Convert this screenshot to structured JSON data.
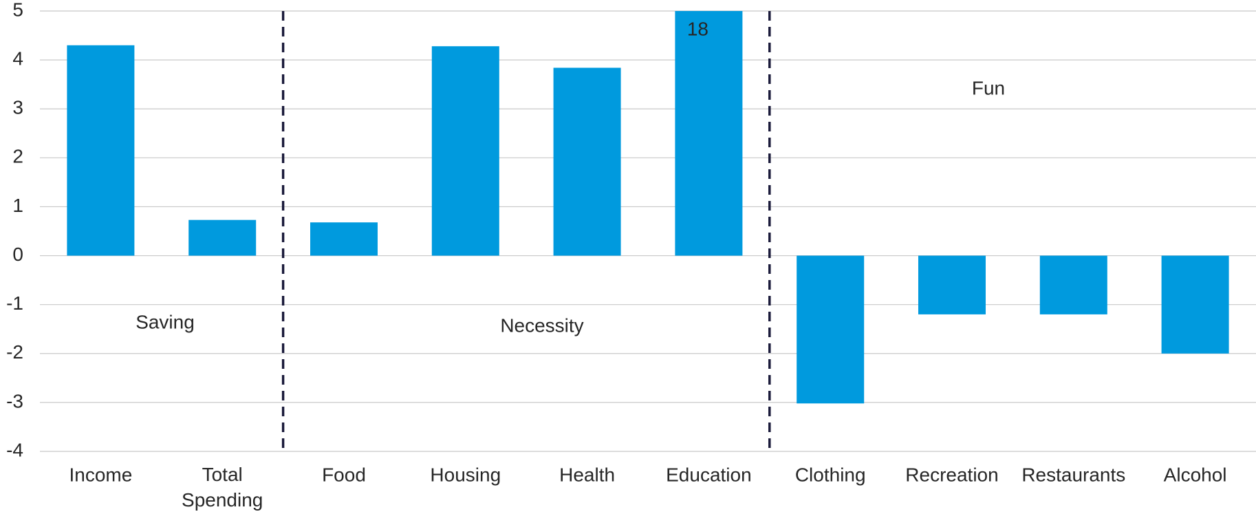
{
  "chart_data": {
    "type": "bar",
    "categories": [
      "Income",
      "Total\nSpending",
      "Food",
      "Housing",
      "Health",
      "Education",
      "Clothing",
      "Recreation",
      "Restaurants",
      "Alcohol"
    ],
    "values": [
      4.3,
      0.73,
      0.68,
      4.28,
      3.84,
      18,
      -3.02,
      -1.2,
      -1.2,
      -2.0
    ],
    "value_labels": [
      null,
      null,
      null,
      null,
      null,
      "18",
      null,
      null,
      null,
      null
    ],
    "color": "#009ade",
    "ylim": [
      -4,
      5
    ],
    "yticks": [
      -4,
      -3,
      -2,
      -1,
      0,
      1,
      2,
      3,
      4,
      5
    ],
    "grid": true,
    "annotations": [
      "Saving",
      "Necessity",
      "Fun"
    ]
  }
}
